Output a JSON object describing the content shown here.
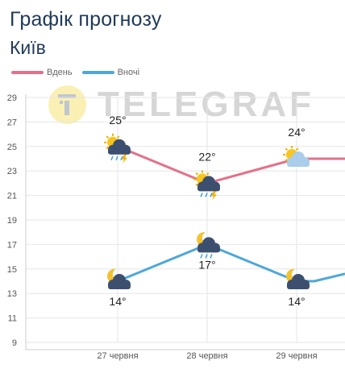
{
  "header": {
    "title": "Графік прогнозу",
    "city": "Київ"
  },
  "watermark": {
    "text": "TELEGRAF"
  },
  "colors": {
    "day": "#e5708a",
    "night": "#4ea8d8",
    "grid": "#e6e6e6",
    "axis": "#cccccc"
  },
  "chart_data": {
    "type": "line",
    "title": "Графік прогнозу",
    "subtitle": "Київ",
    "categories": [
      "27 червня",
      "28 червня",
      "29 червня"
    ],
    "ylim": [
      9,
      29
    ],
    "yticks": [
      9,
      11,
      13,
      15,
      17,
      19,
      21,
      23,
      25,
      27,
      29
    ],
    "grid": true,
    "legend_position": "top-left",
    "series": [
      {
        "name": "Вдень",
        "values": [
          25,
          22,
          24
        ],
        "labels": [
          "25°",
          "22°",
          "24°"
        ],
        "icons": [
          "sun-cloud-rain-thunder-icon",
          "sun-cloud-rain-thunder-icon",
          "sun-cloud-icon"
        ],
        "label_position": "above"
      },
      {
        "name": "Вночі",
        "values": [
          14,
          17,
          14
        ],
        "labels": [
          "14°",
          "17°",
          "14°"
        ],
        "icons": [
          "moon-cloud-icon",
          "moon-cloud-rain-icon",
          "moon-cloud-icon"
        ],
        "label_position": "below"
      }
    ]
  }
}
